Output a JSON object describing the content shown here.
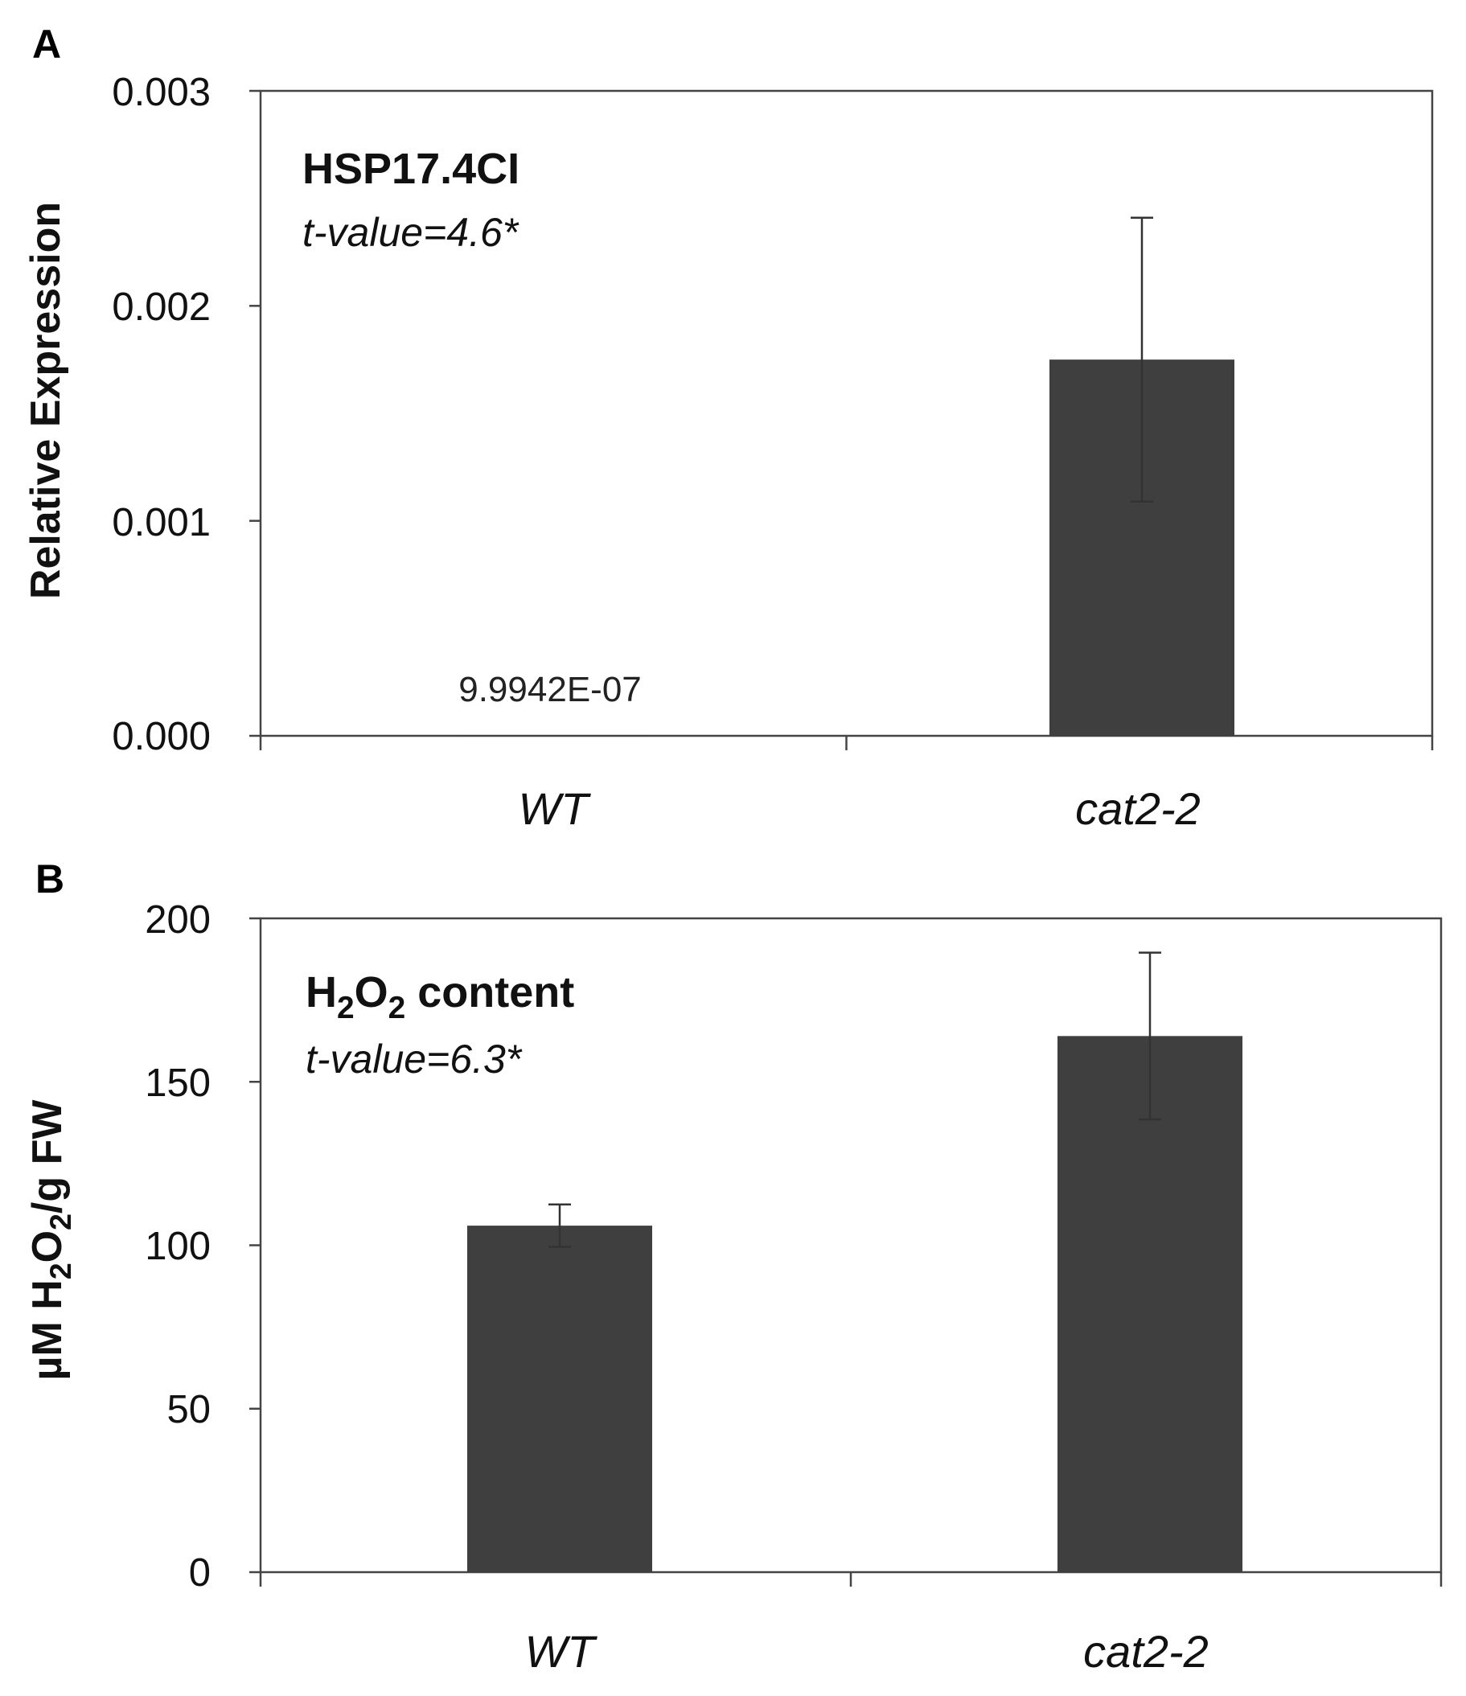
{
  "chart_data": [
    {
      "panel": "A",
      "type": "bar",
      "categories": [
        "WT",
        "cat2-2"
      ],
      "values": [
        9.9942e-07,
        0.00175
      ],
      "error": [
        0.0,
        0.00066
      ],
      "ylabel": "Relative Expression",
      "ylim": [
        0,
        0.003
      ],
      "yticks": [
        "0.000",
        "0.001",
        "0.002",
        "0.003"
      ],
      "annotation": {
        "gene": "HSP17.4CI",
        "t_value": "t-value=4.6*"
      },
      "data_labels": [
        "9.9942E-07",
        ""
      ],
      "colors": {
        "bar": "#3f3f3f"
      }
    },
    {
      "panel": "B",
      "type": "bar",
      "categories": [
        "WT",
        "cat2-2"
      ],
      "values": [
        106,
        164
      ],
      "error": [
        6.5,
        25.5
      ],
      "ylabel": {
        "pre": "µM H",
        "s1": "2",
        "mid": "O",
        "s2": "2",
        "post": "/g FW"
      },
      "ylim": [
        0,
        200
      ],
      "yticks": [
        "0",
        "50",
        "100",
        "150",
        "200"
      ],
      "annotation": {
        "title": {
          "pre": "H",
          "s1": "2",
          "mid": "O",
          "s2": "2",
          "post": " content"
        },
        "t_value": "t-value=6.3*"
      },
      "colors": {
        "bar": "#3f3f3f"
      }
    }
  ]
}
